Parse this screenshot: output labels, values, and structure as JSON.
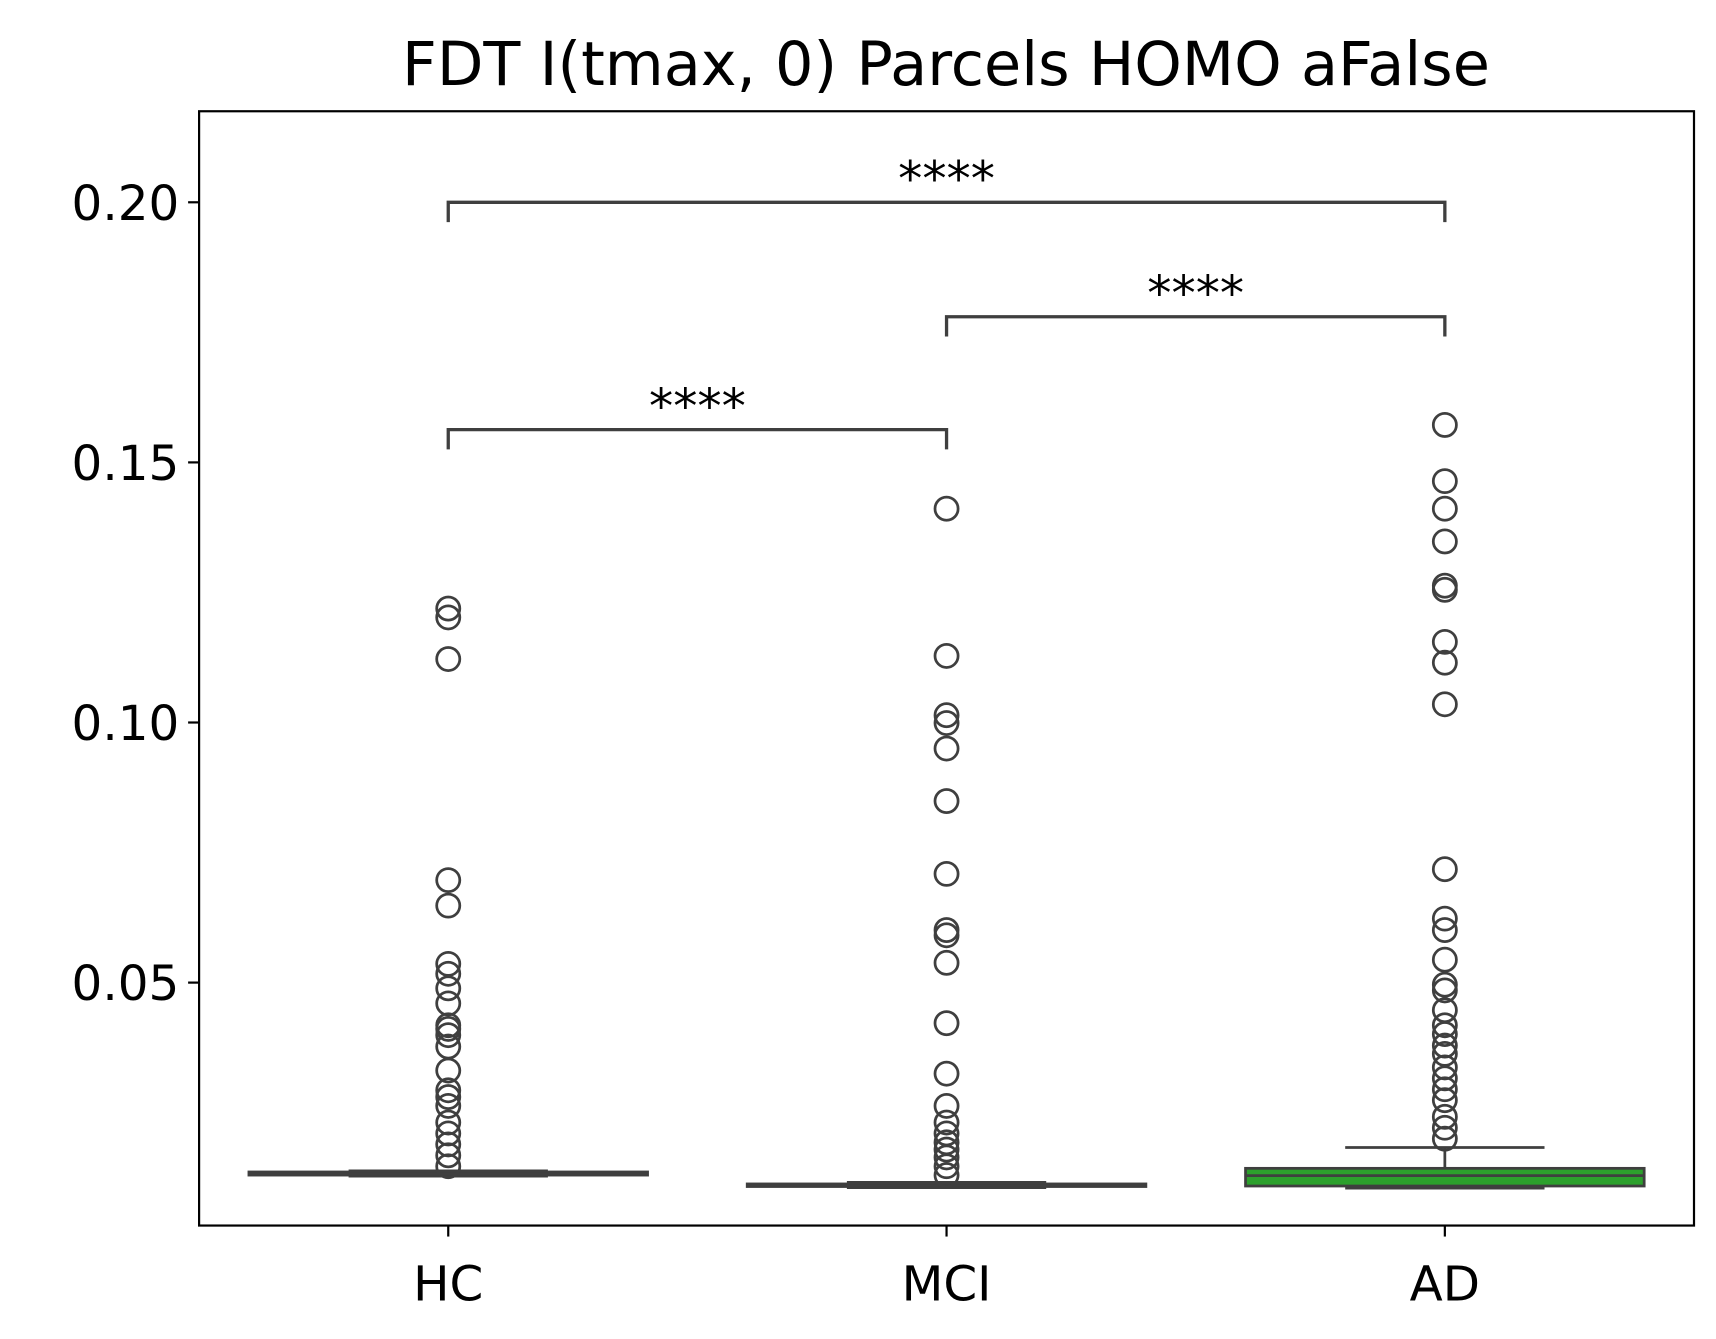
{
  "chart_data": {
    "type": "box",
    "title": "FDT I(tmax, 0) Parcels HOMO aFalse",
    "categories": [
      "HC",
      "MCI",
      "AD"
    ],
    "boxes": [
      {
        "color": "#1f77b4",
        "whislo": 0.0128,
        "q1": 0.013,
        "median": 0.0132,
        "q3": 0.0136,
        "whishi": 0.0138,
        "fliers": [
          0.1219,
          0.1202,
          0.1122,
          0.0697,
          0.0648,
          0.0536,
          0.0517,
          0.0489,
          0.046,
          0.0418,
          0.0411,
          0.0399,
          0.0377,
          0.0331,
          0.0293,
          0.028,
          0.0263,
          0.0231,
          0.021,
          0.0189,
          0.0168,
          0.0147
        ]
      },
      {
        "color": "#ff7f0e",
        "whislo": 0.0106,
        "q1": 0.0108,
        "median": 0.011,
        "q3": 0.0113,
        "whishi": 0.0116,
        "fliers": [
          0.1411,
          0.1128,
          0.1014,
          0.0999,
          0.095,
          0.0849,
          0.0709,
          0.0601,
          0.0591,
          0.0538,
          0.0422,
          0.0325,
          0.0263,
          0.0231,
          0.021,
          0.0193,
          0.0179,
          0.0164,
          0.0147,
          0.013
        ]
      },
      {
        "color": "#2ca02c",
        "whislo": 0.0105,
        "q1": 0.0109,
        "median": 0.0129,
        "q3": 0.0143,
        "whishi": 0.0183,
        "fliers": [
          0.1572,
          0.1464,
          0.1411,
          0.1348,
          0.1263,
          0.1255,
          0.1155,
          0.1115,
          0.1035,
          0.0718,
          0.0623,
          0.0601,
          0.0544,
          0.0496,
          0.0485,
          0.0447,
          0.0418,
          0.0401,
          0.0379,
          0.0363,
          0.0337,
          0.0316,
          0.0295,
          0.0274,
          0.0242,
          0.0221,
          0.02
        ]
      }
    ],
    "annotations": [
      {
        "groups": [
          "HC",
          "AD"
        ],
        "y": 0.2,
        "label": "****"
      },
      {
        "groups": [
          "MCI",
          "AD"
        ],
        "y": 0.178,
        "label": "****"
      },
      {
        "groups": [
          "HC",
          "MCI"
        ],
        "y": 0.1563,
        "label": "****"
      }
    ],
    "ylim": [
      0.0033,
      0.2175
    ],
    "yticks": [
      {
        "value": 0.05,
        "label": "0.05"
      },
      {
        "value": 0.1,
        "label": "0.10"
      },
      {
        "value": 0.15,
        "label": "0.15"
      },
      {
        "value": 0.2,
        "label": "0.20"
      }
    ]
  }
}
